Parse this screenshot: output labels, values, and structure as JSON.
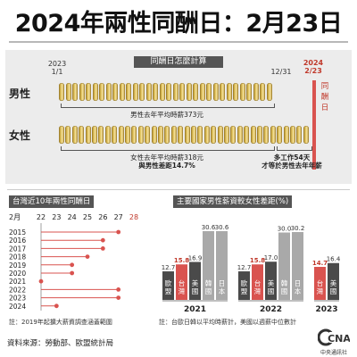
{
  "title": "2024年兩性同酬日：2月23日",
  "top": {
    "header": "同酬日怎麼計算",
    "year_start": "2023",
    "date_start": "1/1",
    "date_end": "12/31",
    "year_red": "2024",
    "date_red": "2/23",
    "vertical_label": "同酬日",
    "male_label": "男性",
    "female_label": "女性",
    "male_caption": "男性去年平均時薪373元",
    "female_caption": "女性去年平均時薪318元",
    "female_caption2": "與男性差距14.7%",
    "extra_work_1": "多工作54天",
    "extra_work_2": "才等於男性去年年薪"
  },
  "colors": {
    "accent_red": "#d9534f",
    "bar_dark": "#4a4a4a",
    "bar_light": "#a9a9a9",
    "bar_red": "#d9534f"
  },
  "chart_data": [
    {
      "type": "scatter",
      "title": "台灣近10年兩性同酬日",
      "xlabel": "2月",
      "x_ticks": [
        "22",
        "23",
        "24",
        "25",
        "26",
        "27",
        "28"
      ],
      "years": [
        "2015",
        "2016",
        "2017",
        "2018",
        "2019",
        "2020",
        "2021",
        "2022",
        "2023",
        "2024"
      ],
      "values": [
        27,
        26,
        26,
        25,
        24,
        24,
        22,
        27,
        27,
        23
      ],
      "footnote": "註：2019年起擴大薪資調查涵蓋範圍"
    },
    {
      "type": "bar",
      "title": "主要國家男性薪資較女性差距(%)",
      "groups": [
        {
          "year": "2021",
          "categories": [
            "歐盟",
            "台灣",
            "美國",
            "韓國",
            "日本"
          ],
          "values": [
            12.7,
            15.8,
            16.9,
            30.6,
            30.6
          ],
          "label_values": [
            "12.7",
            "15.8",
            "16.9",
            "30.6",
            "30.6"
          ]
        },
        {
          "year": "2022",
          "categories": [
            "歐盟",
            "台灣",
            "美國",
            "韓國",
            "日本"
          ],
          "values": [
            12.7,
            15.8,
            17.0,
            30.0,
            30.2
          ],
          "label_values": [
            "12.7",
            "15.8",
            "17.0",
            "30.0",
            "30.2"
          ]
        },
        {
          "year": "2023",
          "categories": [
            "台灣",
            "美國"
          ],
          "values": [
            14.7,
            16.4
          ],
          "label_values": [
            "14.7",
            "16.4"
          ]
        }
      ],
      "footnote": "註：台歐日韓以平均時薪計，美國以週薪中位數計"
    }
  ],
  "source": "資料來源：勞動部、歐盟統計局",
  "logo_text": "CNA",
  "logo_sub": "中央通訊社"
}
